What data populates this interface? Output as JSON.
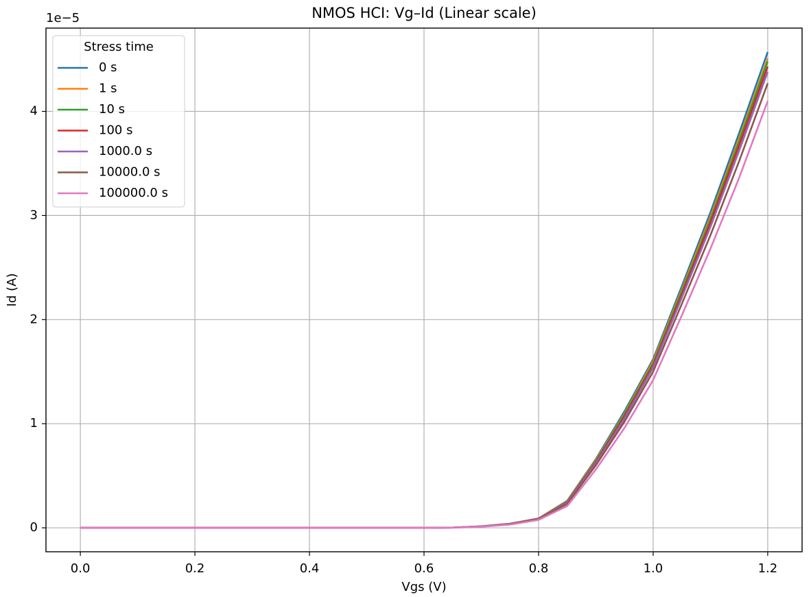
{
  "chart_data": {
    "type": "line",
    "title": "NMOS HCI: Vg–Id (Linear scale)",
    "x_label": "Vgs (V)",
    "y_label": "Id (A)",
    "y_offset_label": "1e−5",
    "legend_title": "Stress time",
    "legend_loc": "upper left",
    "grid": true,
    "x": [
      0,
      0.1,
      0.2,
      0.3,
      0.4,
      0.5,
      0.6,
      0.65,
      0.7,
      0.75,
      0.8,
      0.85,
      0.9,
      0.95,
      1.0,
      1.05,
      1.1,
      1.15,
      1.2
    ],
    "series": [
      {
        "name": "0 s",
        "color": "#1f77b4",
        "values": [
          0,
          0,
          0,
          0,
          0,
          0,
          0,
          0.002,
          0.015,
          0.04,
          0.09,
          0.26,
          0.66,
          1.12,
          1.62,
          2.32,
          3.03,
          3.79,
          4.57
        ]
      },
      {
        "name": "1 s",
        "color": "#ff7f0e",
        "values": [
          0,
          0,
          0,
          0,
          0,
          0,
          0,
          0.002,
          0.014,
          0.039,
          0.09,
          0.255,
          0.65,
          1.1,
          1.6,
          2.29,
          2.99,
          3.74,
          4.51
        ]
      },
      {
        "name": "10 s",
        "color": "#2ca02c",
        "values": [
          0,
          0,
          0,
          0,
          0,
          0,
          0,
          0.002,
          0.014,
          0.038,
          0.088,
          0.25,
          0.64,
          1.09,
          1.58,
          2.27,
          2.96,
          3.71,
          4.48
        ]
      },
      {
        "name": "100 s",
        "color": "#d62728",
        "values": [
          0,
          0,
          0,
          0,
          0,
          0,
          0,
          0.002,
          0.013,
          0.037,
          0.086,
          0.245,
          0.63,
          1.07,
          1.56,
          2.24,
          2.93,
          3.67,
          4.43
        ]
      },
      {
        "name": "1000.0 s",
        "color": "#9467bd",
        "values": [
          0,
          0,
          0,
          0,
          0,
          0,
          0,
          0.002,
          0.013,
          0.036,
          0.084,
          0.24,
          0.62,
          1.05,
          1.54,
          2.21,
          2.89,
          3.62,
          4.38
        ]
      },
      {
        "name": "10000.0 s",
        "color": "#8c564b",
        "values": [
          0,
          0,
          0,
          0,
          0,
          0,
          0,
          0.002,
          0.012,
          0.034,
          0.081,
          0.23,
          0.6,
          1.02,
          1.5,
          2.15,
          2.81,
          3.52,
          4.27
        ]
      },
      {
        "name": "100000.0 s",
        "color": "#e377c2",
        "values": [
          0,
          0,
          0,
          0,
          0,
          0,
          0,
          0.001,
          0.011,
          0.031,
          0.076,
          0.21,
          0.56,
          0.96,
          1.42,
          2.04,
          2.68,
          3.36,
          4.1
        ]
      }
    ],
    "xlim": [
      -0.06,
      1.26
    ],
    "ylim": [
      -0.23,
      4.8
    ],
    "xticks": [
      {
        "value": 0,
        "label": "0.0"
      },
      0.2,
      0.4,
      0.6,
      0.8,
      {
        "value": 1,
        "label": "1.0"
      },
      1.2
    ],
    "yticks": [
      0,
      1,
      2,
      3,
      4
    ]
  }
}
